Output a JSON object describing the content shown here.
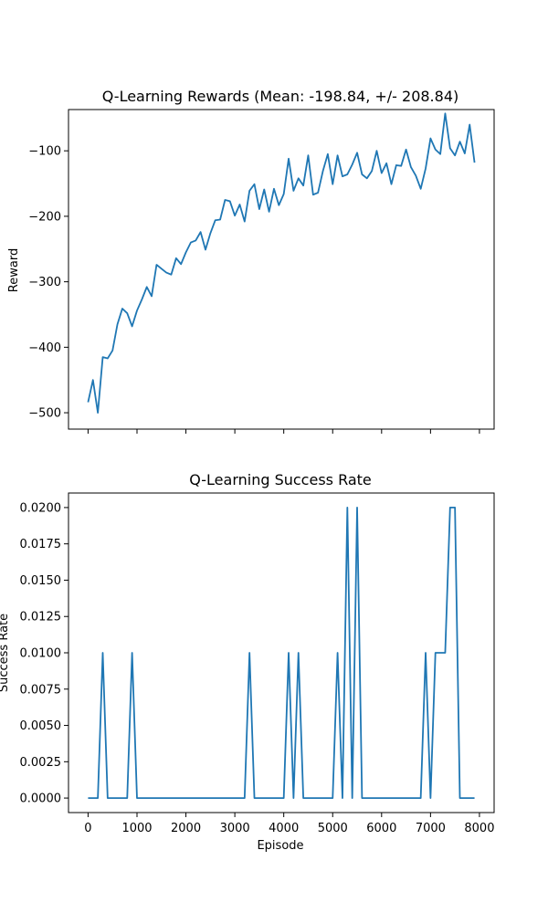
{
  "figure": {
    "background": "#ffffff",
    "line_color": "#1f77b4"
  },
  "chart_data": [
    {
      "type": "line",
      "title": "Q-Learning Rewards (Mean: -198.84, +/- 208.84)",
      "xlabel": "",
      "ylabel": "Reward",
      "xlim": [
        -400,
        8300
      ],
      "ylim": [
        -525,
        -37
      ],
      "xticks": [
        0,
        1000,
        2000,
        3000,
        4000,
        5000,
        6000,
        7000,
        8000
      ],
      "xtick_labels_visible": false,
      "yticks": [
        -500,
        -400,
        -300,
        -200,
        -100
      ],
      "ytick_labels": [
        "−500",
        "−400",
        "−300",
        "−200",
        "−100"
      ],
      "grid": false,
      "series": [
        {
          "x": [
            0,
            100,
            200,
            300,
            400,
            500,
            600,
            700,
            800,
            900,
            1000,
            1100,
            1200,
            1300,
            1400,
            1500,
            1600,
            1700,
            1800,
            1900,
            2000,
            2100,
            2200,
            2300,
            2400,
            2500,
            2600,
            2700,
            2800,
            2900,
            3000,
            3100,
            3200,
            3300,
            3400,
            3500,
            3600,
            3700,
            3800,
            3900,
            4000,
            4100,
            4200,
            4300,
            4400,
            4500,
            4600,
            4700,
            4800,
            4900,
            5000,
            5100,
            5200,
            5300,
            5400,
            5500,
            5600,
            5700,
            5800,
            5900,
            6000,
            6100,
            6200,
            6300,
            6400,
            6500,
            6600,
            6700,
            6800,
            6900,
            7000,
            7100,
            7200,
            7300,
            7400,
            7500,
            7600,
            7700,
            7800,
            7900
          ],
          "y": [
            -484,
            -450,
            -500,
            -415,
            -417,
            -405,
            -365,
            -341,
            -348,
            -368,
            -344,
            -327,
            -308,
            -322,
            -274,
            -280,
            -286,
            -289,
            -264,
            -273,
            -255,
            -240,
            -237,
            -224,
            -251,
            -226,
            -206,
            -205,
            -175,
            -177,
            -199,
            -182,
            -208,
            -161,
            -151,
            -189,
            -159,
            -193,
            -158,
            -183,
            -166,
            -112,
            -161,
            -142,
            -153,
            -107,
            -167,
            -164,
            -131,
            -105,
            -151,
            -107,
            -139,
            -136,
            -121,
            -103,
            -136,
            -142,
            -131,
            -100,
            -134,
            -119,
            -151,
            -122,
            -123,
            -98,
            -125,
            -138,
            -158,
            -127,
            -81,
            -98,
            -105,
            -43,
            -96,
            -107,
            -86,
            -104,
            -60,
            -118
          ]
        }
      ]
    },
    {
      "type": "line",
      "title": "Q-Learning Success Rate",
      "xlabel": "Episode",
      "ylabel": "Success Rate",
      "xlim": [
        -400,
        8300
      ],
      "ylim": [
        -0.001,
        0.021
      ],
      "xticks": [
        0,
        1000,
        2000,
        3000,
        4000,
        5000,
        6000,
        7000,
        8000
      ],
      "xtick_labels": [
        "0",
        "1000",
        "2000",
        "3000",
        "4000",
        "5000",
        "6000",
        "7000",
        "8000"
      ],
      "yticks": [
        0,
        0.0025,
        0.005,
        0.0075,
        0.01,
        0.0125,
        0.015,
        0.0175,
        0.02
      ],
      "ytick_labels": [
        "0.0000",
        "0.0025",
        "0.0050",
        "0.0075",
        "0.0100",
        "0.0125",
        "0.0150",
        "0.0175",
        "0.0200"
      ],
      "grid": false,
      "series": [
        {
          "x": [
            0,
            100,
            200,
            300,
            400,
            500,
            600,
            700,
            800,
            900,
            1000,
            1100,
            1200,
            1300,
            1400,
            1500,
            1600,
            1700,
            1800,
            1900,
            2000,
            2100,
            2200,
            2300,
            2400,
            2500,
            2600,
            2700,
            2800,
            2900,
            3000,
            3100,
            3200,
            3300,
            3400,
            3500,
            3600,
            3700,
            3800,
            3900,
            4000,
            4100,
            4200,
            4300,
            4400,
            4500,
            4600,
            4700,
            4800,
            4900,
            5000,
            5100,
            5200,
            5300,
            5400,
            5500,
            5600,
            5700,
            5800,
            5900,
            6000,
            6100,
            6200,
            6300,
            6400,
            6500,
            6600,
            6700,
            6800,
            6900,
            7000,
            7100,
            7200,
            7300,
            7400,
            7500,
            7600,
            7700,
            7800,
            7900
          ],
          "y": [
            0,
            0,
            0,
            0.01,
            0,
            0,
            0,
            0,
            0,
            0.01,
            0,
            0,
            0,
            0,
            0,
            0,
            0,
            0,
            0,
            0,
            0,
            0,
            0,
            0,
            0,
            0,
            0,
            0,
            0,
            0,
            0,
            0,
            0,
            0.01,
            0,
            0,
            0,
            0,
            0,
            0,
            0,
            0.01,
            0,
            0.01,
            0,
            0,
            0,
            0,
            0,
            0,
            0,
            0.01,
            0,
            0.02,
            0,
            0.02,
            0,
            0,
            0,
            0,
            0,
            0,
            0,
            0,
            0,
            0,
            0,
            0,
            0,
            0.01,
            0,
            0.01,
            0.01,
            0.01,
            0.02,
            0.02,
            0,
            0,
            0,
            0
          ]
        }
      ]
    }
  ]
}
